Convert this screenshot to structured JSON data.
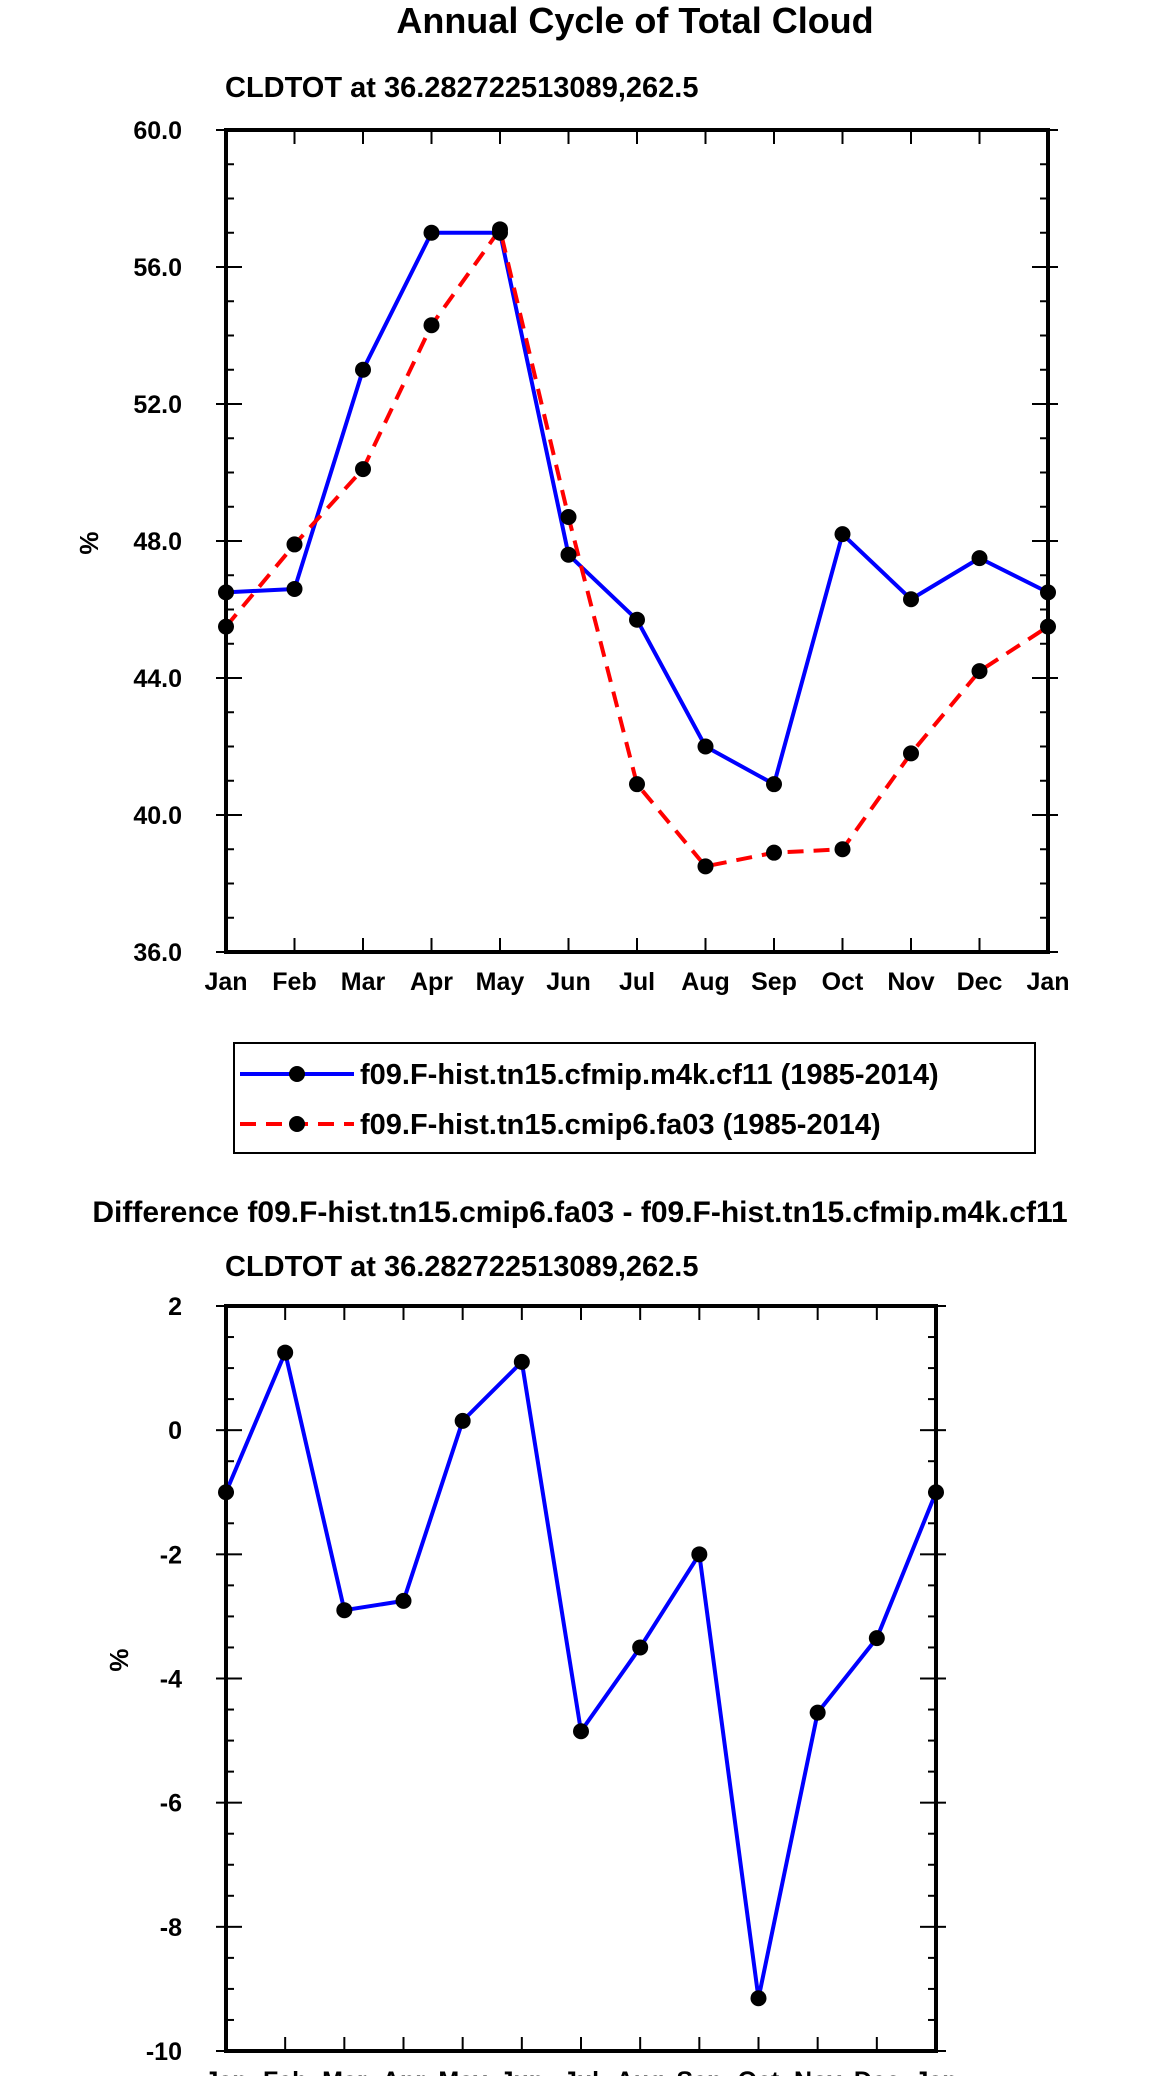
{
  "chart_data": [
    {
      "type": "line",
      "title": "Annual Cycle of Total Cloud",
      "subtitle": "CLDTOT at 36.282722513089,262.5",
      "xlabel": "",
      "ylabel": "%",
      "categories": [
        "Jan",
        "Feb",
        "Mar",
        "Apr",
        "May",
        "Jun",
        "Jul",
        "Aug",
        "Sep",
        "Oct",
        "Nov",
        "Dec",
        "Jan"
      ],
      "ylim": [
        36.0,
        60.0
      ],
      "yticks": [
        "36.0",
        "40.0",
        "44.0",
        "48.0",
        "52.0",
        "56.0",
        "60.0"
      ],
      "ytick_values": [
        36,
        40,
        44,
        48,
        52,
        56,
        60
      ],
      "series": [
        {
          "name": "f09.F-hist.tn15.cfmip.m4k.cf11 (1985-2014)",
          "color": "#0000ff",
          "dash": "solid",
          "values": [
            46.5,
            46.6,
            53.0,
            57.0,
            57.0,
            47.6,
            45.7,
            42.0,
            40.9,
            48.2,
            46.3,
            47.5,
            46.5
          ]
        },
        {
          "name": "f09.F-hist.tn15.cmip6.fa03 (1985-2014)",
          "color": "#ff0000",
          "dash": "dashed",
          "values": [
            45.5,
            47.9,
            50.1,
            54.3,
            57.1,
            48.7,
            40.9,
            38.5,
            38.9,
            39.0,
            41.8,
            44.2,
            45.5
          ]
        }
      ],
      "legend": "bottom"
    },
    {
      "type": "line",
      "title": "Difference f09.F-hist.tn15.cmip6.fa03 - f09.F-hist.tn15.cfmip.m4k.cf11",
      "subtitle": "CLDTOT at 36.282722513089,262.5",
      "xlabel": "",
      "ylabel": "%",
      "categories": [
        "Jan",
        "Feb",
        "Mar",
        "Apr",
        "May",
        "Jun",
        "Jul",
        "Aug",
        "Sep",
        "Oct",
        "Nov",
        "Dec",
        "Jan"
      ],
      "ylim": [
        -10,
        2
      ],
      "yticks": [
        "-10",
        "-8",
        "-6",
        "-4",
        "-2",
        "0",
        "2"
      ],
      "ytick_values": [
        -10,
        -8,
        -6,
        -4,
        -2,
        0,
        2
      ],
      "series": [
        {
          "name": "Difference",
          "color": "#0000ff",
          "dash": "solid",
          "values": [
            -1.0,
            1.25,
            -2.9,
            -2.75,
            0.15,
            1.1,
            -4.85,
            -3.5,
            -2.0,
            -9.15,
            -4.55,
            -3.35,
            -1.0
          ]
        }
      ]
    }
  ]
}
